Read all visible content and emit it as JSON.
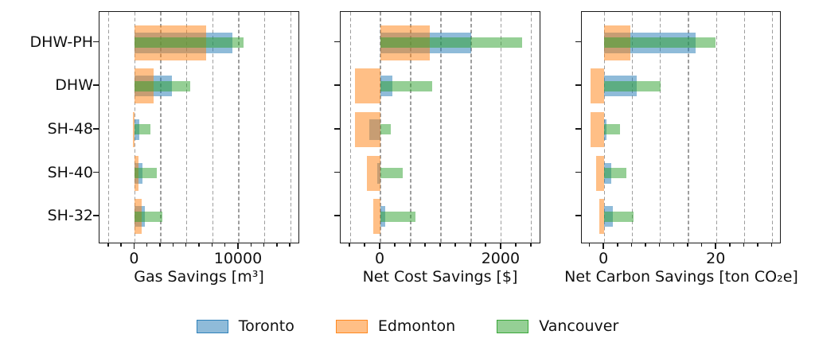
{
  "figure": {
    "background": "#ffffff",
    "text_color": "#111111"
  },
  "chart_data": {
    "type": "bar",
    "orientation": "horizontal",
    "grid": "dashed-vertical",
    "legend_position": "bottom-center",
    "categories": [
      "DHW-PH",
      "DHW",
      "SH-48",
      "SH-40",
      "SH-32"
    ],
    "legend": [
      {
        "name": "Toronto",
        "color": "#1f77b4"
      },
      {
        "name": "Edmonton",
        "color": "#ff7f0e"
      },
      {
        "name": "Vancouver",
        "color": "#2ca02c"
      }
    ],
    "bar_style": {
      "alpha": 0.5,
      "thickness_px": {
        "Toronto": 26,
        "Edmonton": 44,
        "Vancouver": 13
      },
      "z_order": [
        "Toronto",
        "Edmonton",
        "Vancouver"
      ]
    },
    "panels": [
      {
        "xlabel": "Gas Savings [m³]",
        "xlim": [
          -3400,
          15900
        ],
        "grid_step": 2500,
        "minor_step": 1250,
        "major_ticks": [
          0,
          10000
        ],
        "series": [
          {
            "name": "Toronto",
            "values": [
              9400,
              3550,
              400,
              750,
              1000
            ]
          },
          {
            "name": "Edmonton",
            "values": [
              6900,
              1800,
              -150,
              350,
              650
            ]
          },
          {
            "name": "Vancouver",
            "values": [
              10500,
              5300,
              1500,
              2100,
              2650
            ]
          }
        ]
      },
      {
        "xlabel": "Net Cost Savings [$]",
        "xlim": [
          -660,
          2660
        ],
        "grid_step": 500,
        "minor_step": 250,
        "major_ticks": [
          0,
          2000
        ],
        "series": [
          {
            "name": "Toronto",
            "values": [
              1500,
              200,
              -180,
              -50,
              80
            ]
          },
          {
            "name": "Edmonton",
            "values": [
              810,
              -420,
              -420,
              -230,
              -120
            ]
          },
          {
            "name": "Vancouver",
            "values": [
              2350,
              860,
              170,
              370,
              580
            ]
          }
        ]
      },
      {
        "xlabel": "Net Carbon Savings [ton CO₂e]",
        "xlim": [
          -4,
          31.6
        ],
        "grid_step": 5,
        "minor_step": 2.5,
        "major_ticks": [
          0,
          20
        ],
        "series": [
          {
            "name": "Toronto",
            "values": [
              16.3,
              5.8,
              0.4,
              1.2,
              1.6
            ]
          },
          {
            "name": "Edmonton",
            "values": [
              4.6,
              -2.5,
              -2.4,
              -1.4,
              -0.9
            ]
          },
          {
            "name": "Vancouver",
            "values": [
              19.8,
              10,
              2.8,
              4.0,
              5.2
            ]
          }
        ]
      }
    ]
  }
}
